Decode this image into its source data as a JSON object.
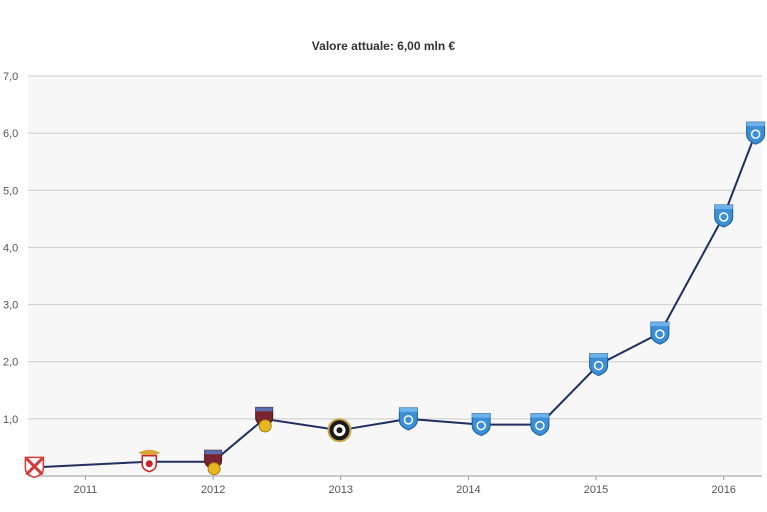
{
  "chart_data": {
    "type": "line",
    "title": "Valore attuale: 6,00 mln €",
    "xlabel": "",
    "ylabel": "",
    "x_ticks": [
      "2011",
      "2012",
      "2013",
      "2014",
      "2015",
      "2016"
    ],
    "y_ticks": [
      "1,0",
      "2,0",
      "3,0",
      "4,0",
      "5,0",
      "6,0",
      "7,0"
    ],
    "xlim": [
      2010.55,
      2016.3
    ],
    "ylim": [
      0,
      7
    ],
    "grid": true,
    "legend": "none",
    "series": [
      {
        "points": [
          {
            "x": 2010.6,
            "y": 0.15,
            "marker": "red-white-shield"
          },
          {
            "x": 2011.5,
            "y": 0.25,
            "marker": "eagle-crest"
          },
          {
            "x": 2012.0,
            "y": 0.25,
            "marker": "maroon-shield-ball"
          },
          {
            "x": 2012.4,
            "y": 1.0,
            "marker": "maroon-shield-ball"
          },
          {
            "x": 2012.99,
            "y": 0.8,
            "marker": "round-black-crest"
          },
          {
            "x": 2013.53,
            "y": 1.0,
            "marker": "blue-shield"
          },
          {
            "x": 2014.1,
            "y": 0.9,
            "marker": "blue-shield"
          },
          {
            "x": 2014.56,
            "y": 0.9,
            "marker": "blue-shield"
          },
          {
            "x": 2015.02,
            "y": 1.95,
            "marker": "blue-shield"
          },
          {
            "x": 2015.5,
            "y": 2.5,
            "marker": "blue-shield"
          },
          {
            "x": 2016.0,
            "y": 4.55,
            "marker": "blue-shield"
          },
          {
            "x": 2016.25,
            "y": 6.0,
            "marker": "blue-shield"
          }
        ]
      }
    ],
    "colors": {
      "line": "#1f2f5e",
      "grid": "#cccccc",
      "plot_bg": "#f7f7f7",
      "blue_shield": "#3b8fd6",
      "red_shield": "#d43a3a",
      "maroon_shield": "#7a2431",
      "ball": "#e8b820"
    }
  }
}
